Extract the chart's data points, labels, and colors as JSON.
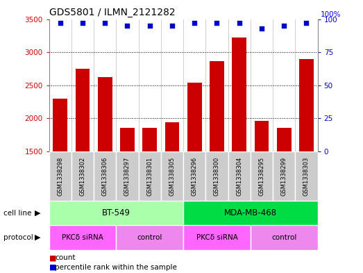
{
  "title": "GDS5801 / ILMN_2121282",
  "samples": [
    "GSM1338298",
    "GSM1338302",
    "GSM1338306",
    "GSM1338297",
    "GSM1338301",
    "GSM1338305",
    "GSM1338296",
    "GSM1338300",
    "GSM1338304",
    "GSM1338295",
    "GSM1338299",
    "GSM1338303"
  ],
  "counts": [
    2300,
    2750,
    2620,
    1860,
    1860,
    1940,
    2540,
    2870,
    3220,
    1960,
    1860,
    2900
  ],
  "percentiles": [
    97,
    97,
    97,
    95,
    95,
    95,
    97,
    97,
    97,
    93,
    95,
    97
  ],
  "ylim_left": [
    1500,
    3500
  ],
  "ylim_right": [
    0,
    100
  ],
  "yticks_left": [
    1500,
    2000,
    2500,
    3000,
    3500
  ],
  "yticks_right": [
    0,
    25,
    50,
    75,
    100
  ],
  "bar_color": "#cc0000",
  "dot_color": "#0000cc",
  "cell_lines": [
    {
      "label": "BT-549",
      "start": 0,
      "end": 6,
      "color": "#aaffaa"
    },
    {
      "label": "MDA-MB-468",
      "start": 6,
      "end": 12,
      "color": "#00dd44"
    }
  ],
  "protocols": [
    {
      "label": "PKCδ siRNA",
      "start": 0,
      "end": 3,
      "color": "#ff66ff"
    },
    {
      "label": "control",
      "start": 3,
      "end": 6,
      "color": "#ee88ee"
    },
    {
      "label": "PKCδ siRNA",
      "start": 6,
      "end": 9,
      "color": "#ff66ff"
    },
    {
      "label": "control",
      "start": 9,
      "end": 12,
      "color": "#ee88ee"
    }
  ],
  "legend_count_label": "count",
  "legend_percentile_label": "percentile rank within the sample",
  "cell_line_label": "cell line",
  "protocol_label": "protocol",
  "sample_bg_color": "#cccccc",
  "bg_color": "#ffffff"
}
